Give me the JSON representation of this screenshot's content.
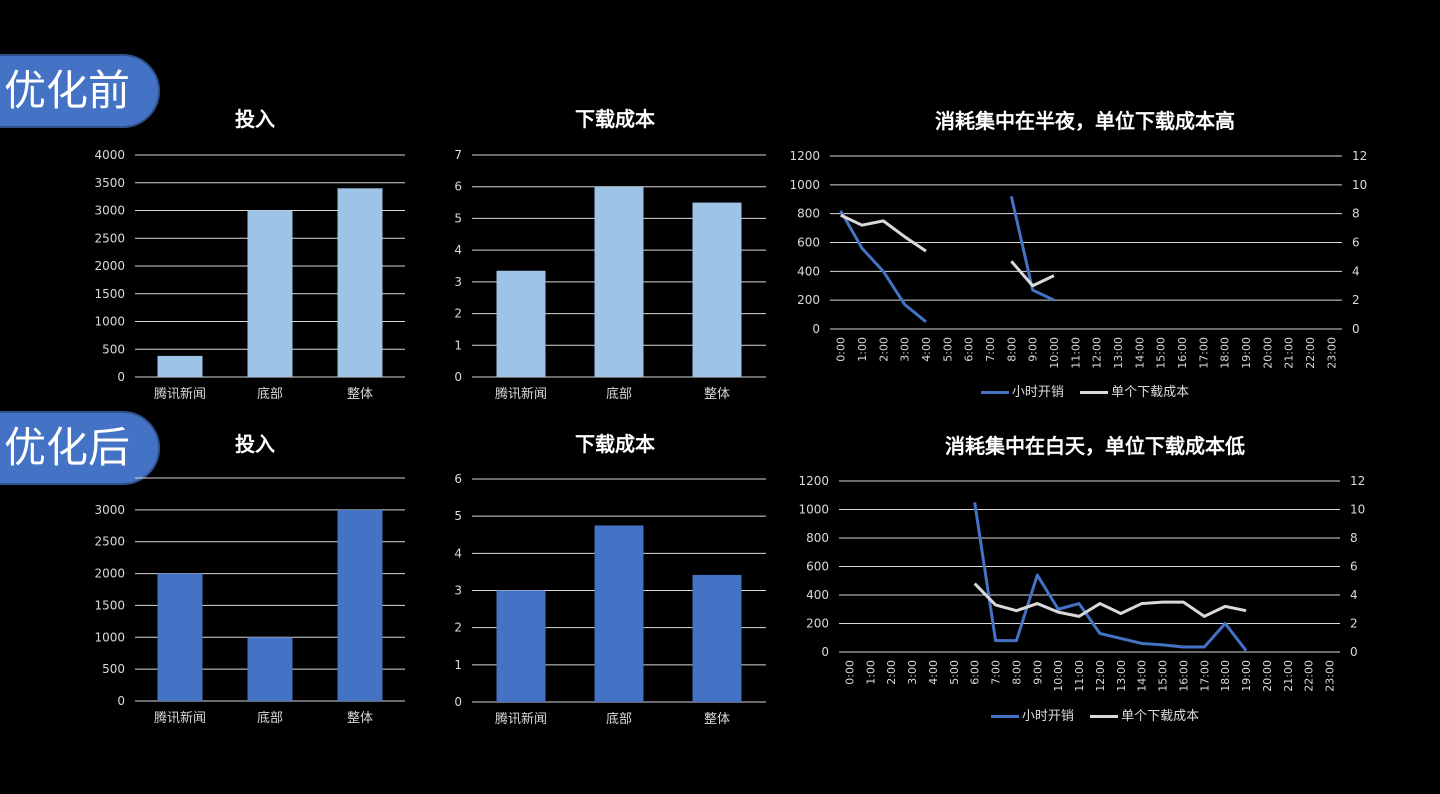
{
  "sections": {
    "before_label": "优化前",
    "after_label": "优化后"
  },
  "colors": {
    "light_bar": "#9dc3e6",
    "dark_bar": "#4472c4",
    "white_line": "#d9d9d9",
    "background": "#000000"
  },
  "chart_data": [
    {
      "id": "before-invest",
      "type": "bar",
      "title": "投入",
      "categories": [
        "腾讯新闻",
        "底部",
        "整体"
      ],
      "values": [
        380,
        3000,
        3400
      ],
      "ylim": [
        0,
        4000
      ],
      "yticks": [
        0,
        500,
        1000,
        1500,
        2000,
        2500,
        3000,
        3500,
        4000
      ],
      "color": "#9dc3e6",
      "grid": true
    },
    {
      "id": "before-cost",
      "type": "bar",
      "title": "下载成本",
      "categories": [
        "腾讯新闻",
        "底部",
        "整体"
      ],
      "values": [
        3.35,
        6.0,
        5.5
      ],
      "ylim": [
        0,
        7
      ],
      "yticks": [
        0,
        1,
        2,
        3,
        4,
        5,
        6,
        7
      ],
      "color": "#9dc3e6",
      "grid": true
    },
    {
      "id": "before-hourly",
      "type": "line",
      "title": "消耗集中在半夜，单位下载成本高",
      "x": [
        "0:00",
        "1:00",
        "2:00",
        "3:00",
        "4:00",
        "5:00",
        "6:00",
        "7:00",
        "8:00",
        "9:00",
        "10:00",
        "11:00",
        "12:00",
        "13:00",
        "14:00",
        "15:00",
        "16:00",
        "17:00",
        "18:00",
        "19:00",
        "20:00",
        "21:00",
        "22:00",
        "23:00"
      ],
      "ylim": [
        0,
        1200
      ],
      "yticks": [
        0,
        200,
        400,
        600,
        800,
        1000,
        1200
      ],
      "y2lim": [
        0,
        12
      ],
      "y2ticks": [
        0,
        2,
        4,
        6,
        8,
        10,
        12
      ],
      "series": [
        {
          "name": "小时开销",
          "axis": "left",
          "color": "#4472c4",
          "values": [
            820,
            560,
            400,
            170,
            50,
            null,
            null,
            null,
            920,
            270,
            200,
            null,
            null,
            null,
            null,
            null,
            null,
            null,
            null,
            null,
            null,
            null,
            null,
            null
          ]
        },
        {
          "name": "单个下载成本",
          "axis": "right",
          "color": "#d9d9d9",
          "values": [
            7.9,
            7.2,
            7.5,
            6.4,
            5.4,
            null,
            null,
            null,
            4.7,
            3.0,
            3.7,
            null,
            null,
            null,
            null,
            null,
            null,
            null,
            null,
            null,
            null,
            null,
            null,
            null
          ]
        }
      ],
      "legend": "bottom",
      "grid": true
    },
    {
      "id": "after-invest",
      "type": "bar",
      "title": "投入",
      "categories": [
        "腾讯新闻",
        "底部",
        "整体"
      ],
      "values": [
        2000,
        1000,
        3000
      ],
      "ylim": [
        0,
        3500
      ],
      "yticks": [
        0,
        500,
        1000,
        1500,
        2000,
        2500,
        3000
      ],
      "color": "#4472c4",
      "grid": true
    },
    {
      "id": "after-cost",
      "type": "bar",
      "title": "下载成本",
      "categories": [
        "腾讯新闻",
        "底部",
        "整体"
      ],
      "values": [
        3.0,
        4.75,
        3.42
      ],
      "ylim": [
        0,
        6
      ],
      "yticks": [
        0,
        1,
        2,
        3,
        4,
        5,
        6
      ],
      "color": "#4472c4",
      "grid": true
    },
    {
      "id": "after-hourly",
      "type": "line",
      "title": "消耗集中在白天，单位下载成本低",
      "x": [
        "0:00",
        "1:00",
        "2:00",
        "3:00",
        "4:00",
        "5:00",
        "6:00",
        "7:00",
        "8:00",
        "9:00",
        "10:00",
        "11:00",
        "12:00",
        "13:00",
        "14:00",
        "15:00",
        "16:00",
        "17:00",
        "18:00",
        "19:00",
        "20:00",
        "21:00",
        "22:00",
        "23:00"
      ],
      "ylim": [
        0,
        1200
      ],
      "yticks": [
        0,
        200,
        400,
        600,
        800,
        1000,
        1200
      ],
      "y2lim": [
        0,
        12
      ],
      "y2ticks": [
        0,
        2,
        4,
        6,
        8,
        10,
        12
      ],
      "series": [
        {
          "name": "小时开销",
          "axis": "left",
          "color": "#4472c4",
          "values": [
            null,
            null,
            null,
            null,
            null,
            null,
            1050,
            80,
            80,
            540,
            300,
            340,
            130,
            95,
            60,
            50,
            35,
            35,
            200,
            10,
            null,
            null,
            null,
            null
          ]
        },
        {
          "name": "单个下载成本",
          "axis": "right",
          "color": "#d9d9d9",
          "values": [
            null,
            null,
            null,
            null,
            null,
            null,
            4.8,
            3.3,
            2.9,
            3.4,
            2.8,
            2.5,
            3.4,
            2.7,
            3.4,
            3.5,
            3.5,
            2.5,
            3.2,
            2.9,
            null,
            null,
            null,
            null
          ]
        }
      ],
      "legend": "bottom",
      "grid": true
    }
  ]
}
